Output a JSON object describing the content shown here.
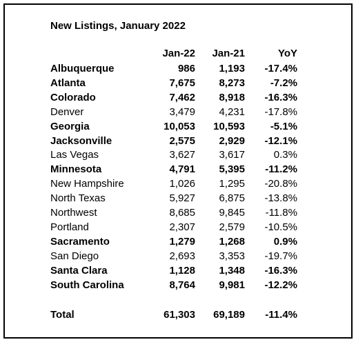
{
  "title": "New Listings, January 2022",
  "table": {
    "header": [
      "Jan-22",
      "Jan-21",
      "YoY"
    ],
    "rows": [
      {
        "name": "Albuquerque",
        "cells": [
          "986",
          "1,193",
          "-17.4%"
        ],
        "bold": true
      },
      {
        "name": "Atlanta",
        "cells": [
          "7,675",
          "8,273",
          "-7.2%"
        ],
        "bold": true
      },
      {
        "name": "Colorado",
        "cells": [
          "7,462",
          "8,918",
          "-16.3%"
        ],
        "bold": true
      },
      {
        "name": "Denver",
        "cells": [
          "3,479",
          "4,231",
          "-17.8%"
        ],
        "bold": false
      },
      {
        "name": "Georgia",
        "cells": [
          "10,053",
          "10,593",
          "-5.1%"
        ],
        "bold": true
      },
      {
        "name": "Jacksonville",
        "cells": [
          "2,575",
          "2,929",
          "-12.1%"
        ],
        "bold": true
      },
      {
        "name": "Las Vegas",
        "cells": [
          "3,627",
          "3,617",
          "0.3%"
        ],
        "bold": false
      },
      {
        "name": "Minnesota",
        "cells": [
          "4,791",
          "5,395",
          "-11.2%"
        ],
        "bold": true
      },
      {
        "name": "New Hampshire",
        "cells": [
          "1,026",
          "1,295",
          "-20.8%"
        ],
        "bold": false
      },
      {
        "name": "North Texas",
        "cells": [
          "5,927",
          "6,875",
          "-13.8%"
        ],
        "bold": false
      },
      {
        "name": "Northwest",
        "cells": [
          "8,685",
          "9,845",
          "-11.8%"
        ],
        "bold": false
      },
      {
        "name": "Portland",
        "cells": [
          "2,307",
          "2,579",
          "-10.5%"
        ],
        "bold": false
      },
      {
        "name": "Sacramento",
        "cells": [
          "1,279",
          "1,268",
          "0.9%"
        ],
        "bold": true
      },
      {
        "name": "San Diego",
        "cells": [
          "2,693",
          "3,353",
          "-19.7%"
        ],
        "bold": false
      },
      {
        "name": "Santa Clara",
        "cells": [
          "1,128",
          "1,348",
          "-16.3%"
        ],
        "bold": true
      },
      {
        "name": "South Carolina",
        "cells": [
          "8,764",
          "9,981",
          "-12.2%"
        ],
        "bold": true
      }
    ],
    "total": {
      "name": "Total",
      "cells": [
        "61,303",
        "69,189",
        "-11.4%"
      ],
      "bold": true
    }
  }
}
